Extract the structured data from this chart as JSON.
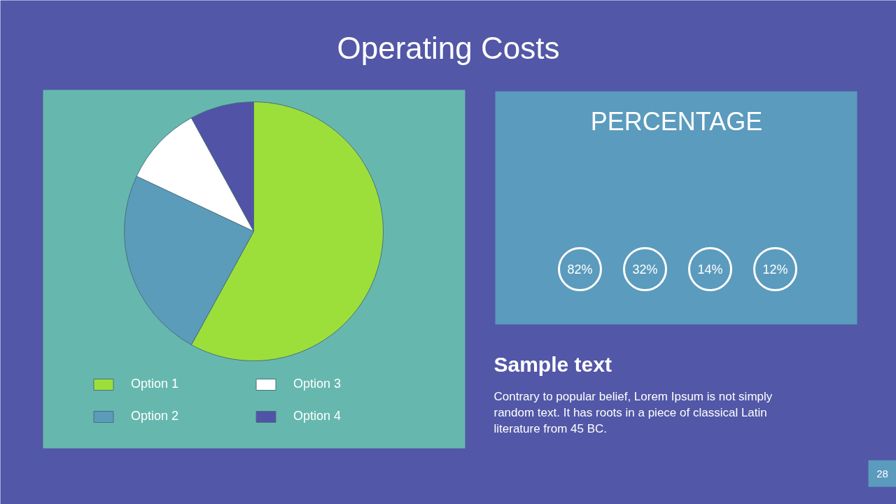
{
  "chart_data": [
    {
      "type": "pie",
      "title": "Operating Costs",
      "categories": [
        "Option 1",
        "Option 2",
        "Option 3",
        "Option 4"
      ],
      "values": [
        58,
        24,
        10,
        8
      ],
      "colors": [
        "#9ddf3a",
        "#5a9cb9",
        "#ffffff",
        "#5153a6"
      ],
      "legend": "bottom",
      "annotations": [
        "Sample text",
        "Contrary to popular belief, Lorem Ipsum is not simply random text. It has roots in a piece of classical Latin literature from 45 BC.",
        "28"
      ]
    },
    {
      "type": "other",
      "title": "PERCENTAGE",
      "values": [
        82,
        32,
        14,
        12
      ],
      "value_labels": [
        "82%",
        "32%",
        "14%",
        "12%"
      ]
    }
  ]
}
